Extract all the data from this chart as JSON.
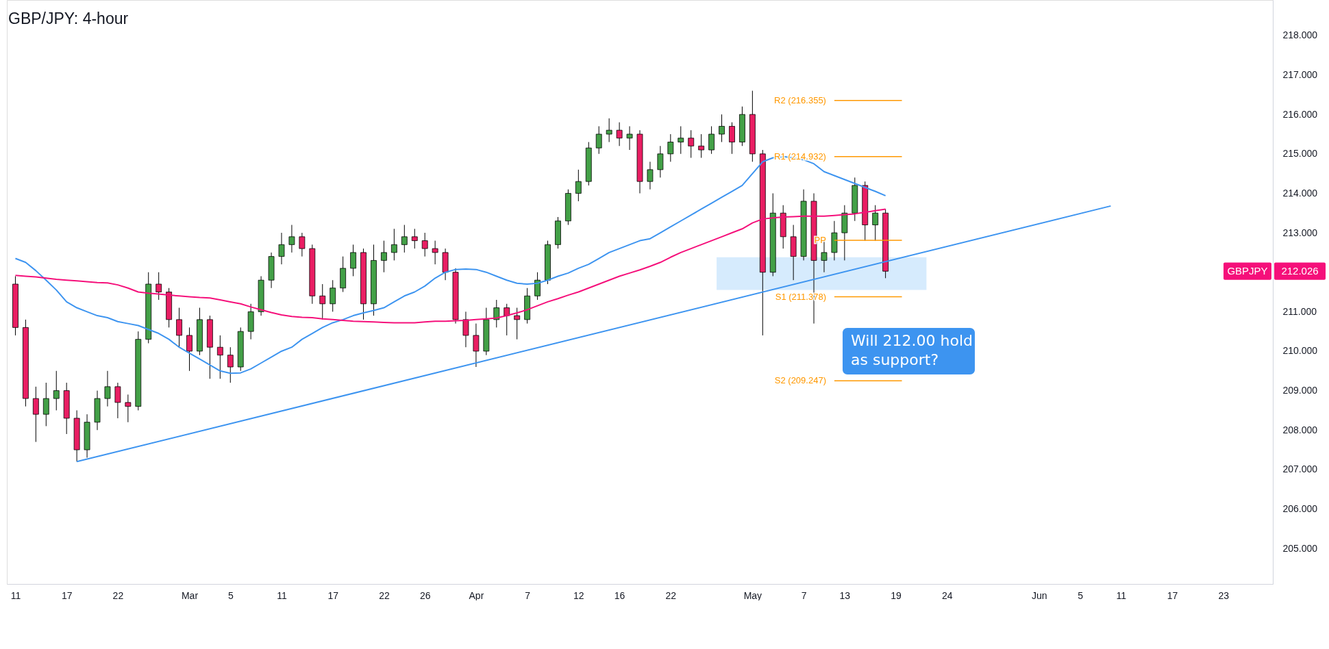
{
  "chart_data": {
    "type": "candlestick",
    "title": "GBP/JPY: 4-hour",
    "categories": [
      "11",
      null,
      null,
      null,
      null,
      "17",
      null,
      null,
      null,
      null,
      "22",
      null,
      null,
      null,
      null,
      null,
      null,
      "Mar",
      null,
      null,
      null,
      "5",
      null,
      null,
      null,
      null,
      "11",
      null,
      null,
      null,
      null,
      "17",
      null,
      null,
      null,
      null,
      "22",
      null,
      null,
      null,
      "26",
      null,
      null,
      null,
      null,
      "Apr",
      null,
      null,
      null,
      null,
      "7",
      null,
      null,
      null,
      null,
      "12",
      null,
      null,
      null,
      "16",
      null,
      null,
      null,
      null,
      "22",
      null,
      null,
      null,
      null,
      null,
      null,
      null,
      "May",
      null,
      null,
      null,
      null,
      "7",
      null,
      null,
      null,
      "13",
      null,
      null,
      null,
      null,
      "19",
      null,
      null,
      null,
      null,
      "24",
      null,
      null,
      null,
      null,
      null,
      null,
      null,
      null,
      "Jun",
      null,
      null,
      null,
      "5",
      null,
      null,
      null,
      "11",
      null,
      null,
      null,
      null,
      "17",
      null,
      null,
      null,
      null,
      "23",
      null,
      null,
      null,
      null
    ],
    "ohlc": [
      [
        211.7,
        211.9,
        210.4,
        210.6
      ],
      [
        210.6,
        210.8,
        208.6,
        208.8
      ],
      [
        208.8,
        209.1,
        207.7,
        208.4
      ],
      [
        208.4,
        209.2,
        208.1,
        208.8
      ],
      [
        208.8,
        209.5,
        208.5,
        209.0
      ],
      [
        209.0,
        209.2,
        207.9,
        208.3
      ],
      [
        208.3,
        208.5,
        207.2,
        207.5
      ],
      [
        207.5,
        208.4,
        207.3,
        208.2
      ],
      [
        208.2,
        209.0,
        208.0,
        208.8
      ],
      [
        208.8,
        209.5,
        208.6,
        209.1
      ],
      [
        209.1,
        209.2,
        208.3,
        208.7
      ],
      [
        208.7,
        208.9,
        208.2,
        208.6
      ],
      [
        208.6,
        210.5,
        208.5,
        210.3
      ],
      [
        210.3,
        212.0,
        210.2,
        211.7
      ],
      [
        211.7,
        212.0,
        211.3,
        211.5
      ],
      [
        211.5,
        211.6,
        210.6,
        210.8
      ],
      [
        210.8,
        211.1,
        210.1,
        210.4
      ],
      [
        210.4,
        210.6,
        209.5,
        210.0
      ],
      [
        210.0,
        211.1,
        209.9,
        210.8
      ],
      [
        210.8,
        210.9,
        209.3,
        210.1
      ],
      [
        210.1,
        210.4,
        209.3,
        209.9
      ],
      [
        209.9,
        210.1,
        209.2,
        209.6
      ],
      [
        209.6,
        210.6,
        209.5,
        210.5
      ],
      [
        210.5,
        211.2,
        210.3,
        211.0
      ],
      [
        211.0,
        211.9,
        210.9,
        211.8
      ],
      [
        211.8,
        212.5,
        211.6,
        212.4
      ],
      [
        212.4,
        213.0,
        212.2,
        212.7
      ],
      [
        212.7,
        213.2,
        212.5,
        212.9
      ],
      [
        212.9,
        213.0,
        212.4,
        212.6
      ],
      [
        212.6,
        212.7,
        211.2,
        211.4
      ],
      [
        211.4,
        211.7,
        210.8,
        211.2
      ],
      [
        211.2,
        211.8,
        211.0,
        211.6
      ],
      [
        211.6,
        212.4,
        211.5,
        212.1
      ],
      [
        212.1,
        212.7,
        211.9,
        212.5
      ],
      [
        212.5,
        212.6,
        210.8,
        211.2
      ],
      [
        211.2,
        212.7,
        210.9,
        212.3
      ],
      [
        212.3,
        212.8,
        212.0,
        212.5
      ],
      [
        212.5,
        213.1,
        212.3,
        212.7
      ],
      [
        212.7,
        213.2,
        212.5,
        212.9
      ],
      [
        212.9,
        213.1,
        212.6,
        212.8
      ],
      [
        212.8,
        213.0,
        212.4,
        212.6
      ],
      [
        212.6,
        212.8,
        212.2,
        212.5
      ],
      [
        212.5,
        212.6,
        211.8,
        212.0
      ],
      [
        212.0,
        212.1,
        210.7,
        210.8
      ],
      [
        210.8,
        211.0,
        210.1,
        210.4
      ],
      [
        210.4,
        210.7,
        209.6,
        210.0
      ],
      [
        210.0,
        211.1,
        209.9,
        210.8
      ],
      [
        210.8,
        211.3,
        210.6,
        211.1
      ],
      [
        211.1,
        211.2,
        210.4,
        210.9
      ],
      [
        210.9,
        211.1,
        210.3,
        210.8
      ],
      [
        210.8,
        211.6,
        210.7,
        211.4
      ],
      [
        211.4,
        212.0,
        211.3,
        211.8
      ],
      [
        211.8,
        212.8,
        211.7,
        212.7
      ],
      [
        212.7,
        213.4,
        212.6,
        213.3
      ],
      [
        213.3,
        214.1,
        213.2,
        214.0
      ],
      [
        214.0,
        214.6,
        213.8,
        214.3
      ],
      [
        214.3,
        215.3,
        214.2,
        215.15
      ],
      [
        215.15,
        215.7,
        215.0,
        215.5
      ],
      [
        215.5,
        215.9,
        215.3,
        215.6
      ],
      [
        215.6,
        215.8,
        215.2,
        215.4
      ],
      [
        215.4,
        215.7,
        215.1,
        215.5
      ],
      [
        215.5,
        215.6,
        214.0,
        214.3
      ],
      [
        214.3,
        214.8,
        214.1,
        214.6
      ],
      [
        214.6,
        215.2,
        214.4,
        215.0
      ],
      [
        215.0,
        215.5,
        214.8,
        215.3
      ],
      [
        215.3,
        215.7,
        215.0,
        215.4
      ],
      [
        215.4,
        215.6,
        214.9,
        215.2
      ],
      [
        215.2,
        215.5,
        214.9,
        215.1
      ],
      [
        215.1,
        215.7,
        215.0,
        215.5
      ],
      [
        215.5,
        216.0,
        215.3,
        215.7
      ],
      [
        215.7,
        215.8,
        215.0,
        215.3
      ],
      [
        215.3,
        216.2,
        215.2,
        216.0
      ],
      [
        216.0,
        216.6,
        214.8,
        215.0
      ],
      [
        215.0,
        215.1,
        210.4,
        212.0
      ],
      [
        212.0,
        214.0,
        211.9,
        213.5
      ],
      [
        213.5,
        213.7,
        212.6,
        212.9
      ],
      [
        212.9,
        213.2,
        211.8,
        212.4
      ],
      [
        212.4,
        214.1,
        212.3,
        213.8
      ],
      [
        213.8,
        214.0,
        210.7,
        212.3
      ],
      [
        212.3,
        212.8,
        212.0,
        212.5
      ],
      [
        212.5,
        213.3,
        212.3,
        213.0
      ],
      [
        213.0,
        213.7,
        212.3,
        213.5
      ],
      [
        213.5,
        214.4,
        213.3,
        214.2
      ],
      [
        214.2,
        214.3,
        212.8,
        213.2
      ],
      [
        213.2,
        213.7,
        212.8,
        213.5
      ],
      [
        213.5,
        213.6,
        211.85,
        212.026
      ],
      null,
      null,
      null,
      null,
      null,
      null,
      null,
      null,
      null,
      null,
      null,
      null,
      null,
      null,
      null,
      null,
      null,
      null,
      null,
      null,
      null,
      null,
      null,
      null,
      null,
      null,
      null,
      null,
      null,
      null,
      null,
      null,
      null,
      null,
      null,
      null,
      null
    ],
    "colors": [
      "#e91e63",
      "#e91e63",
      "#e91e63",
      "#43a047",
      "#43a047",
      "#e91e63",
      "#e91e63",
      "#43a047",
      "#43a047",
      "#43a047",
      "#e91e63",
      "#e91e63",
      "#43a047",
      "#43a047",
      "#e91e63",
      "#e91e63",
      "#e91e63",
      "#e91e63",
      "#43a047",
      "#e91e63",
      "#e91e63",
      "#e91e63",
      "#43a047",
      "#43a047",
      "#43a047",
      "#43a047",
      "#43a047",
      "#43a047",
      "#e91e63",
      "#e91e63",
      "#e91e63",
      "#43a047",
      "#43a047",
      "#43a047",
      "#e91e63",
      "#43a047",
      "#43a047",
      "#43a047",
      "#43a047",
      "#e91e63",
      "#e91e63",
      "#e91e63",
      "#e91e63",
      "#e91e63",
      "#e91e63",
      "#e91e63",
      "#43a047",
      "#43a047",
      "#e91e63",
      "#e91e63",
      "#43a047",
      "#43a047",
      "#43a047",
      "#43a047",
      "#43a047",
      "#43a047",
      "#43a047",
      "#43a047",
      "#43a047",
      "#e91e63",
      "#43a047",
      "#e91e63",
      "#43a047",
      "#43a047",
      "#43a047",
      "#43a047",
      "#e91e63",
      "#e91e63",
      "#43a047",
      "#43a047",
      "#e91e63",
      "#43a047",
      "#e91e63",
      "#e91e63",
      "#43a047",
      "#e91e63",
      "#e91e63",
      "#43a047",
      "#e91e63",
      "#43a047",
      "#43a047",
      "#43a047",
      "#43a047",
      "#e91e63",
      "#43a047",
      "#e91e63",
      null,
      null,
      null,
      null,
      null,
      null,
      null,
      null,
      null,
      null,
      null,
      null,
      null,
      null,
      null,
      null,
      null,
      null,
      null,
      null,
      null,
      null,
      null,
      null,
      null,
      null,
      null,
      null,
      null,
      null,
      null,
      null,
      null,
      null,
      null,
      null,
      null
    ],
    "series": [
      {
        "type": "line",
        "color": "#3d94f0",
        "values": [
          212.35,
          212.25,
          212.04,
          211.8,
          211.55,
          211.25,
          211.1,
          211.0,
          210.9,
          210.85,
          210.75,
          210.7,
          210.65,
          210.55,
          210.45,
          210.3,
          210.1,
          209.95,
          209.8,
          209.65,
          209.5,
          209.44,
          209.45,
          209.55,
          209.7,
          209.85,
          210.0,
          210.1,
          210.3,
          210.45,
          210.6,
          210.72,
          210.8,
          210.9,
          210.97,
          211.03,
          211.1,
          211.25,
          211.4,
          211.5,
          211.65,
          211.85,
          212.0,
          212.07,
          212.08,
          212.07,
          212.0,
          211.9,
          211.8,
          211.72,
          211.7,
          211.72,
          211.8,
          211.9,
          211.98,
          212.1,
          212.2,
          212.35,
          212.5,
          212.6,
          212.7,
          212.8,
          212.85,
          213.0,
          213.15,
          213.3,
          213.45,
          213.6,
          213.75,
          213.9,
          214.05,
          214.2,
          214.5,
          214.8,
          214.9,
          214.93,
          214.9,
          214.85,
          214.75,
          214.55,
          214.45,
          214.35,
          214.25,
          214.15,
          214.05,
          213.94,
          null,
          null,
          null,
          null,
          null,
          null,
          null,
          null,
          null,
          null,
          null,
          null,
          null,
          null,
          null,
          null,
          null,
          null,
          null,
          null,
          null,
          null,
          null,
          null,
          null,
          null,
          null,
          null,
          null,
          null,
          null,
          null,
          null,
          null,
          null,
          null,
          null
        ]
      },
      {
        "type": "line",
        "color": "#f50f7a",
        "values": [
          211.92,
          211.9,
          211.88,
          211.85,
          211.82,
          211.8,
          211.78,
          211.76,
          211.74,
          211.73,
          211.68,
          211.6,
          211.5,
          211.47,
          211.45,
          211.42,
          211.4,
          211.38,
          211.36,
          211.35,
          211.3,
          211.25,
          211.2,
          211.12,
          211.05,
          210.98,
          210.92,
          210.88,
          210.86,
          210.85,
          210.82,
          210.8,
          210.78,
          210.76,
          210.75,
          210.74,
          210.73,
          210.72,
          210.72,
          210.72,
          210.74,
          210.76,
          210.76,
          210.77,
          210.78,
          210.8,
          210.82,
          210.84,
          210.9,
          210.97,
          211.05,
          211.15,
          211.25,
          211.33,
          211.42,
          211.5,
          211.6,
          211.7,
          211.8,
          211.9,
          211.98,
          212.06,
          212.15,
          212.25,
          212.38,
          212.5,
          212.6,
          212.7,
          212.8,
          212.9,
          213.0,
          213.1,
          213.25,
          213.35,
          213.38,
          213.4,
          213.41,
          213.42,
          213.42,
          213.42,
          213.44,
          213.46,
          213.48,
          213.52,
          213.56,
          213.6,
          null,
          null,
          null,
          null,
          null,
          null,
          null,
          null,
          null,
          null,
          null,
          null,
          null,
          null,
          null,
          null,
          null,
          null,
          null,
          null,
          null,
          null,
          null,
          null,
          null,
          null,
          null,
          null,
          null,
          null,
          null,
          null,
          null,
          null,
          null,
          null,
          null
        ]
      },
      {
        "type": "line",
        "color": "#3d94f0",
        "values": [
          null,
          null,
          null,
          null,
          null,
          null,
          207.2,
          null,
          null,
          null,
          null,
          null,
          null,
          null,
          null,
          null,
          null,
          null,
          null,
          null,
          null,
          null,
          null,
          null,
          null,
          null,
          null,
          null,
          null,
          null,
          null,
          null,
          null,
          null,
          null,
          null,
          null,
          null,
          null,
          null,
          null,
          null,
          null,
          null,
          null,
          null,
          null,
          null,
          null,
          null,
          null,
          null,
          null,
          null,
          null,
          null,
          null,
          null,
          null,
          null,
          null,
          null,
          null,
          null,
          null,
          null,
          null,
          null,
          null,
          null,
          null,
          null,
          null,
          null,
          null,
          null,
          null,
          null,
          null,
          null,
          null,
          null,
          null,
          null,
          null,
          null,
          null,
          null,
          null,
          null,
          null,
          null,
          null,
          null,
          null,
          null,
          null,
          null,
          null,
          null,
          null,
          null,
          null,
          null,
          null,
          null,
          null,
          213.68,
          null,
          null,
          null,
          null,
          null,
          null,
          null,
          null,
          null,
          null,
          null,
          null,
          null,
          null,
          null
        ]
      }
    ],
    "ylim": [
      204.1,
      218.9
    ],
    "yticks": [
      {
        "value": 205,
        "label": "205.000"
      },
      {
        "value": 206,
        "label": "206.000"
      },
      {
        "value": 207,
        "label": "207.000"
      },
      {
        "value": 208,
        "label": "208.000"
      },
      {
        "value": 209,
        "label": "209.000"
      },
      {
        "value": 210,
        "label": "210.000"
      },
      {
        "value": 211,
        "label": "211.000"
      },
      {
        "value": 213,
        "label": "213.000"
      },
      {
        "value": 214,
        "label": "214.000"
      },
      {
        "value": 215,
        "label": "215.000"
      },
      {
        "value": 216,
        "label": "216.000"
      },
      {
        "value": 217,
        "label": "217.000"
      },
      {
        "value": 218,
        "label": "218.000"
      }
    ],
    "grid": false,
    "ref_lines": [
      {
        "axis": "y",
        "value": 216.355,
        "label": "R2 (216.355)",
        "color": "#ff9800"
      },
      {
        "axis": "y",
        "value": 214.932,
        "label": "R1 (214.932)",
        "color": "#ff9800"
      },
      {
        "axis": "y",
        "value": 212.81,
        "label": "PP",
        "color": "#ff9800"
      },
      {
        "axis": "y",
        "value": 211.378,
        "label": "S1 (211.378)",
        "color": "#ff9800"
      },
      {
        "axis": "y",
        "value": 209.247,
        "label": "S2 (209.247)",
        "color": "#ff9800"
      }
    ],
    "bands": [
      {
        "axis": "y",
        "from": 211.55,
        "to": 212.38,
        "color": "#bbdefb"
      }
    ],
    "annotations": [
      "GBPJPY",
      "212.026",
      "Will 212.00 hold as support?"
    ]
  }
}
